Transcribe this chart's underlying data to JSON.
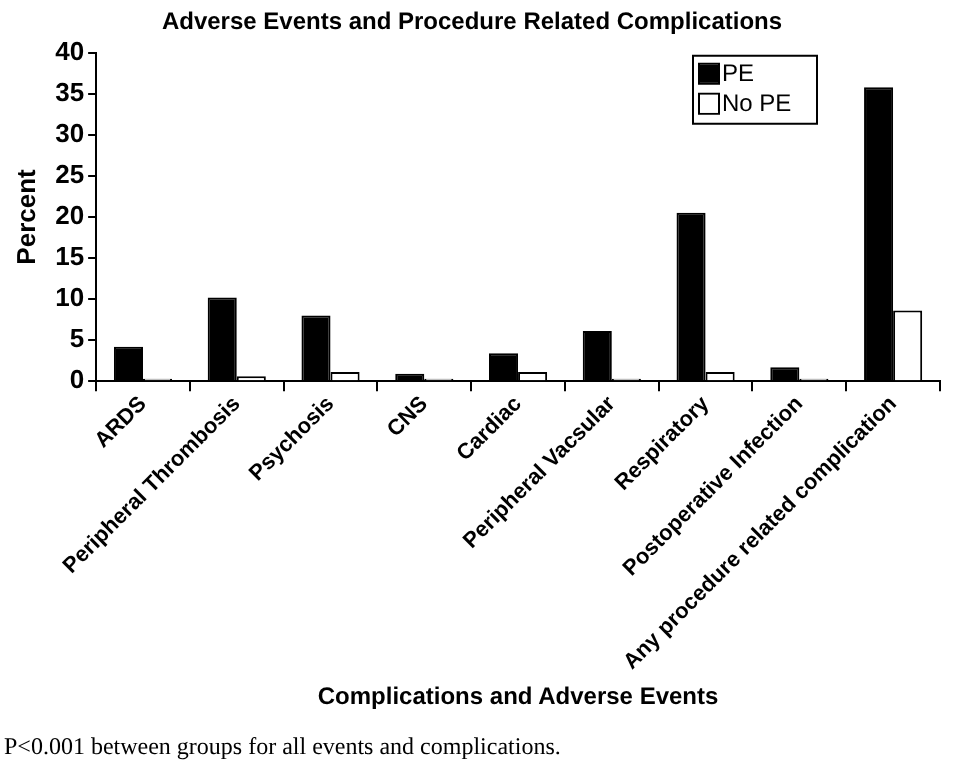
{
  "chart_data": {
    "type": "bar",
    "title": "Adverse Events and Procedure Related Complications",
    "xlabel": "Complications and Adverse Events",
    "ylabel": "Percent",
    "categories": [
      "ARDS",
      "Peripheral Thrombosis",
      "Psychosis",
      "CNS",
      "Cardiac",
      "Peripheral Vacsular",
      "Respiratory",
      "Postoperative Infection",
      "Any procedure related complication"
    ],
    "series": [
      {
        "name": "PE",
        "color": "#000000",
        "values": [
          4.2,
          10.2,
          8.0,
          0.9,
          3.4,
          6.1,
          20.5,
          1.7,
          35.8
        ]
      },
      {
        "name": "No PE",
        "color": "#ffffff",
        "values": [
          0.3,
          0.6,
          1.1,
          0.3,
          1.1,
          0.3,
          1.1,
          0.3,
          8.6
        ]
      }
    ],
    "ylim": [
      0,
      40
    ],
    "yticks": [
      0,
      5,
      10,
      15,
      20,
      25,
      30,
      35,
      40
    ],
    "grid": false,
    "legend": "top right",
    "annotations": [
      "P<0.001 between groups for all events and complications."
    ]
  }
}
